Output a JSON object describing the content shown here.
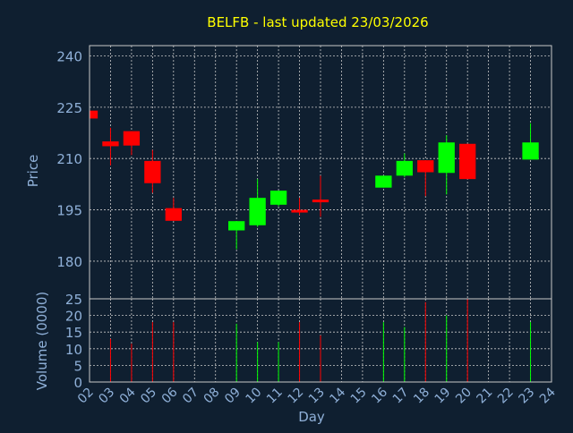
{
  "chart_data": {
    "type": "candlestick",
    "title": "BELFB - last updated 23/03/2026",
    "xlabel": "Day",
    "ylabel": "Price",
    "volume_label": "Volume (0000)",
    "x_ticks": [
      "02",
      "03",
      "04",
      "05",
      "06",
      "07",
      "08",
      "09",
      "10",
      "11",
      "12",
      "13",
      "14",
      "15",
      "16",
      "17",
      "18",
      "19",
      "20",
      "21",
      "22",
      "23",
      "24"
    ],
    "price_ticks": [
      180,
      195,
      210,
      225,
      240
    ],
    "price_ylim": [
      169,
      243
    ],
    "volume_ticks": [
      0,
      5,
      10,
      15,
      20,
      25
    ],
    "volume_ylim": [
      0,
      25
    ],
    "grid": true,
    "colors": {
      "background": "#0f1f30",
      "up": "#00ff00",
      "down": "#ff0000",
      "title": "#ffff00",
      "axis_text": "#8fb0d8",
      "grid": "#c8c8c8",
      "frame": "#c8c8c8"
    },
    "candles": [
      {
        "day": "02",
        "open": 224.0,
        "close": 221.7,
        "high": 224.0,
        "low": 221.7,
        "volume": 0
      },
      {
        "day": "03",
        "open": 215.0,
        "close": 213.6,
        "high": 219.0,
        "low": 208.0,
        "volume": 13.0
      },
      {
        "day": "04",
        "open": 218.0,
        "close": 213.8,
        "high": 218.0,
        "low": 211.0,
        "volume": 11.5
      },
      {
        "day": "05",
        "open": 209.3,
        "close": 202.8,
        "high": 212.5,
        "low": 200.0,
        "volume": 18.0
      },
      {
        "day": "06",
        "open": 195.5,
        "close": 191.8,
        "high": 198.5,
        "low": 191.8,
        "volume": 18.0
      },
      {
        "day": "09",
        "open": 189.0,
        "close": 191.7,
        "high": 191.7,
        "low": 183.5,
        "volume": 17.5
      },
      {
        "day": "10",
        "open": 190.5,
        "close": 198.5,
        "high": 204.0,
        "low": 190.0,
        "volume": 12.0
      },
      {
        "day": "11",
        "open": 196.5,
        "close": 200.6,
        "high": 200.6,
        "low": 196.0,
        "volume": 12.0
      },
      {
        "day": "12",
        "open": 195.0,
        "close": 194.6,
        "high": 198.5,
        "low": 193.5,
        "volume": 18.0
      },
      {
        "day": "13",
        "open": 198.0,
        "close": 197.4,
        "high": 205.0,
        "low": 193.0,
        "volume": 14.0
      },
      {
        "day": "16",
        "open": 201.5,
        "close": 205.0,
        "high": 205.0,
        "low": 201.5,
        "volume": 18.0
      },
      {
        "day": "17",
        "open": 205.0,
        "close": 209.3,
        "high": 211.5,
        "low": 204.5,
        "volume": 16.5
      },
      {
        "day": "18",
        "open": 209.5,
        "close": 206.0,
        "high": 209.5,
        "low": 199.0,
        "volume": 24.0
      },
      {
        "day": "19",
        "open": 205.8,
        "close": 214.7,
        "high": 216.8,
        "low": 199.5,
        "volume": 20.0
      },
      {
        "day": "20",
        "open": 214.3,
        "close": 204.0,
        "high": 214.3,
        "low": 204.0,
        "volume": 25.0
      },
      {
        "day": "23",
        "open": 209.7,
        "close": 214.7,
        "high": 220.3,
        "low": 209.7,
        "volume": 18.0
      }
    ]
  }
}
